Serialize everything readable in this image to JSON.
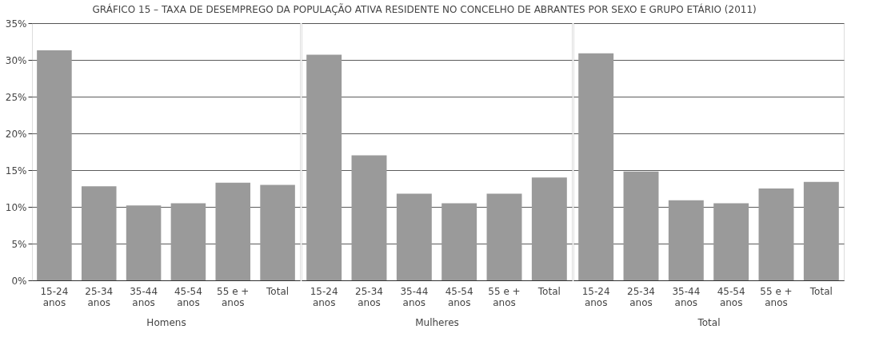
{
  "chart_data": [
    {
      "type": "bar",
      "title": "GRÁFICO 15 – TAXA DE DESEMPREGO DA POPULAÇÃO ATIVA RESIDENTE NO CONCELHO DE ABRANTES POR SEXO E GRUPO ETÁRIO (2011)",
      "xlabel": "Homens",
      "categories": [
        "15-24 anos",
        "25-34 anos",
        "35-44 anos",
        "45-54 anos",
        "55 e + anos",
        "Total"
      ],
      "values": [
        31.3,
        12.8,
        10.2,
        10.5,
        13.3,
        13.0
      ],
      "color": "#9a9a9a",
      "ylim": [
        0,
        35
      ],
      "yticks": [
        {
          "value": 0,
          "label": "0%"
        },
        {
          "value": 5,
          "label": "5%"
        },
        {
          "value": 10,
          "label": "10%"
        },
        {
          "value": 15,
          "label": "15%"
        },
        {
          "value": 20,
          "label": "20%"
        },
        {
          "value": 25,
          "label": "25%"
        },
        {
          "value": 30,
          "label": "30%"
        },
        {
          "value": 35,
          "label": "35%"
        }
      ],
      "grid": "y"
    },
    {
      "type": "bar",
      "xlabel": "Mulheres",
      "categories": [
        "15-24 anos",
        "25-34 anos",
        "35-44 anos",
        "45-54 anos",
        "55 e + anos",
        "Total"
      ],
      "values": [
        30.7,
        17.0,
        11.8,
        10.5,
        11.8,
        14.0
      ],
      "color": "#9a9a9a",
      "ylim": [
        0,
        35
      ],
      "yticks": [
        0,
        5,
        10,
        15,
        20,
        25,
        30,
        35
      ],
      "grid": "y",
      "tick_labels": "x"
    },
    {
      "type": "bar",
      "xlabel": "Total",
      "categories": [
        "15-24 anos",
        "25-34 anos",
        "35-44 anos",
        "45-54 anos",
        "55 e + anos",
        "Total"
      ],
      "values": [
        30.9,
        14.8,
        10.9,
        10.5,
        12.5,
        13.4
      ],
      "color": "#9a9a9a",
      "ylim": [
        0,
        35
      ],
      "yticks": [
        0,
        5,
        10,
        15,
        20,
        25,
        30,
        35
      ],
      "grid": "y",
      "tick_labels": "x"
    }
  ]
}
